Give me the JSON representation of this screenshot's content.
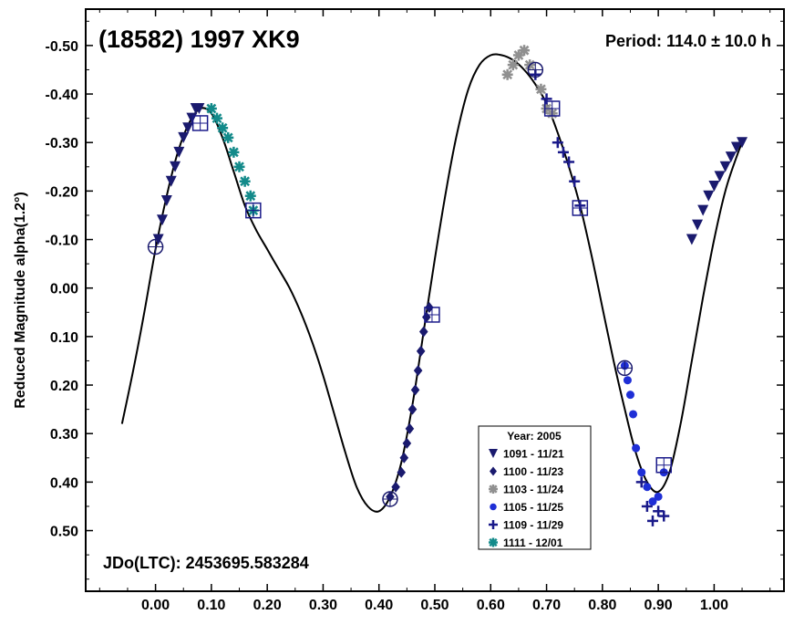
{
  "chart_data": {
    "type": "scatter",
    "title": "(18582) 1997 XK9",
    "period_text": "Period: 114.0 ± 10.0 h",
    "epoch_text": "JDo(LTC): 2453695.583284",
    "ylabel": "Reduced Magnitude alpha(1.2°)",
    "xlabel": "",
    "xlim": [
      -0.125,
      1.125
    ],
    "ylim": [
      0.625,
      -0.575
    ],
    "y_inverted": true,
    "x_ticks": [
      "0.00",
      "0.10",
      "0.20",
      "0.30",
      "0.40",
      "0.50",
      "0.60",
      "0.70",
      "0.80",
      "0.90",
      "1.00"
    ],
    "x_tick_values": [
      0,
      0.1,
      0.2,
      0.3,
      0.4,
      0.5,
      0.6,
      0.7,
      0.8,
      0.9,
      1.0
    ],
    "y_ticks": [
      "-0.50",
      "-0.40",
      "-0.30",
      "-0.20",
      "-0.10",
      "0.00",
      "0.10",
      "0.20",
      "0.30",
      "0.40",
      "0.50"
    ],
    "y_tick_values": [
      -0.5,
      -0.4,
      -0.3,
      -0.2,
      -0.1,
      0,
      0.1,
      0.2,
      0.3,
      0.4,
      0.5
    ],
    "grid": false,
    "legend": {
      "title": "Year: 2005",
      "placement": "bottom-center",
      "entries": [
        {
          "label": "1091 - 11/21",
          "marker": "triangle-down",
          "color": "#1a1a6e"
        },
        {
          "label": "1100 - 11/23",
          "marker": "diamond",
          "color": "#1a1a6e"
        },
        {
          "label": "1103 - 11/24",
          "marker": "asterisk",
          "color": "#909090"
        },
        {
          "label": "1105 - 11/25",
          "marker": "circle",
          "color": "#1f2fd6"
        },
        {
          "label": "1109 - 11/29",
          "marker": "plus",
          "color": "#1a1a8a"
        },
        {
          "label": "1111 - 12/01",
          "marker": "asterisk",
          "color": "#138a8a"
        }
      ]
    },
    "fit_curve": {
      "x": [
        -0.06,
        -0.04,
        -0.02,
        0.0,
        0.02,
        0.04,
        0.06,
        0.08,
        0.1,
        0.12,
        0.14,
        0.16,
        0.18,
        0.2,
        0.22,
        0.24,
        0.26,
        0.28,
        0.3,
        0.32,
        0.34,
        0.36,
        0.38,
        0.4,
        0.42,
        0.44,
        0.46,
        0.48,
        0.5,
        0.52,
        0.54,
        0.56,
        0.58,
        0.6,
        0.62,
        0.64,
        0.66,
        0.68,
        0.7,
        0.72,
        0.74,
        0.76,
        0.78,
        0.8,
        0.82,
        0.84,
        0.86,
        0.88,
        0.9,
        0.92,
        0.94,
        0.96,
        0.98,
        1.0,
        1.02,
        1.04,
        1.05
      ],
      "y": [
        0.28,
        0.17,
        0.05,
        -0.08,
        -0.19,
        -0.28,
        -0.34,
        -0.37,
        -0.36,
        -0.31,
        -0.24,
        -0.17,
        -0.12,
        -0.08,
        -0.04,
        0.0,
        0.05,
        0.11,
        0.18,
        0.26,
        0.34,
        0.41,
        0.45,
        0.46,
        0.43,
        0.36,
        0.24,
        0.09,
        -0.06,
        -0.2,
        -0.32,
        -0.41,
        -0.46,
        -0.48,
        -0.48,
        -0.47,
        -0.45,
        -0.42,
        -0.38,
        -0.32,
        -0.25,
        -0.17,
        -0.07,
        0.04,
        0.15,
        0.25,
        0.34,
        0.4,
        0.42,
        0.38,
        0.28,
        0.15,
        0.02,
        -0.1,
        -0.2,
        -0.27,
        -0.3
      ]
    },
    "series": [
      {
        "name": "1091 - 11/21",
        "marker": "triangle-down",
        "color": "#1a1a6e",
        "x": [
          0.005,
          0.012,
          0.02,
          0.028,
          0.035,
          0.042,
          0.05,
          0.058,
          0.065,
          0.072,
          0.078,
          0.96,
          0.97,
          0.98,
          0.99,
          1.0,
          1.01,
          1.02,
          1.03,
          1.04,
          1.05
        ],
        "y": [
          -0.1,
          -0.14,
          -0.18,
          -0.22,
          -0.25,
          -0.28,
          -0.31,
          -0.33,
          -0.35,
          -0.37,
          -0.37,
          -0.1,
          -0.13,
          -0.16,
          -0.19,
          -0.21,
          -0.23,
          -0.25,
          -0.27,
          -0.29,
          -0.3
        ]
      },
      {
        "name": "1100 - 11/23",
        "marker": "diamond",
        "color": "#1a1a6e",
        "x": [
          0.42,
          0.43,
          0.44,
          0.445,
          0.45,
          0.455,
          0.46,
          0.465,
          0.47,
          0.475,
          0.48,
          0.485,
          0.49
        ],
        "y": [
          0.43,
          0.41,
          0.38,
          0.35,
          0.32,
          0.29,
          0.25,
          0.21,
          0.17,
          0.13,
          0.09,
          0.06,
          0.04
        ]
      },
      {
        "name": "1103 - 11/24",
        "marker": "asterisk",
        "color": "#909090",
        "x": [
          0.63,
          0.64,
          0.65,
          0.66,
          0.67,
          0.69,
          0.7,
          0.71
        ],
        "y": [
          -0.44,
          -0.46,
          -0.48,
          -0.49,
          -0.46,
          -0.41,
          -0.37,
          -0.36
        ]
      },
      {
        "name": "1105 - 11/25",
        "marker": "circle",
        "color": "#1f2fd6",
        "x": [
          0.84,
          0.845,
          0.85,
          0.855,
          0.86,
          0.87,
          0.88,
          0.89,
          0.9,
          0.91
        ],
        "y": [
          0.16,
          0.19,
          0.22,
          0.26,
          0.33,
          0.38,
          0.41,
          0.44,
          0.43,
          0.38
        ]
      },
      {
        "name": "1109 - 11/29",
        "marker": "plus",
        "color": "#1a1a8a",
        "x": [
          0.68,
          0.7,
          0.72,
          0.73,
          0.74,
          0.75,
          0.76,
          0.87,
          0.88,
          0.89,
          0.9,
          0.91
        ],
        "y": [
          -0.44,
          -0.39,
          -0.3,
          -0.28,
          -0.26,
          -0.22,
          -0.17,
          0.4,
          0.45,
          0.48,
          0.46,
          0.47
        ]
      },
      {
        "name": "1111 - 12/01",
        "marker": "asterisk",
        "color": "#138a8a",
        "x": [
          0.1,
          0.11,
          0.12,
          0.13,
          0.14,
          0.15,
          0.16,
          0.17,
          0.175
        ],
        "y": [
          -0.37,
          -0.35,
          -0.33,
          -0.31,
          -0.28,
          -0.25,
          -0.22,
          -0.19,
          -0.16
        ]
      }
    ],
    "annotated_points": [
      {
        "x": 0.0,
        "y": -0.085,
        "shape": "circle-cross"
      },
      {
        "x": 0.42,
        "y": 0.435,
        "shape": "circle-cross"
      },
      {
        "x": 0.68,
        "y": -0.45,
        "shape": "circle-cross"
      },
      {
        "x": 0.84,
        "y": 0.165,
        "shape": "circle-cross"
      },
      {
        "x": 0.08,
        "y": -0.34,
        "shape": "square-cross"
      },
      {
        "x": 0.175,
        "y": -0.16,
        "shape": "square-cross"
      },
      {
        "x": 0.495,
        "y": 0.055,
        "shape": "square-cross"
      },
      {
        "x": 0.71,
        "y": -0.37,
        "shape": "square-cross"
      },
      {
        "x": 0.76,
        "y": -0.165,
        "shape": "square-cross"
      },
      {
        "x": 0.91,
        "y": 0.365,
        "shape": "square-cross"
      }
    ]
  }
}
